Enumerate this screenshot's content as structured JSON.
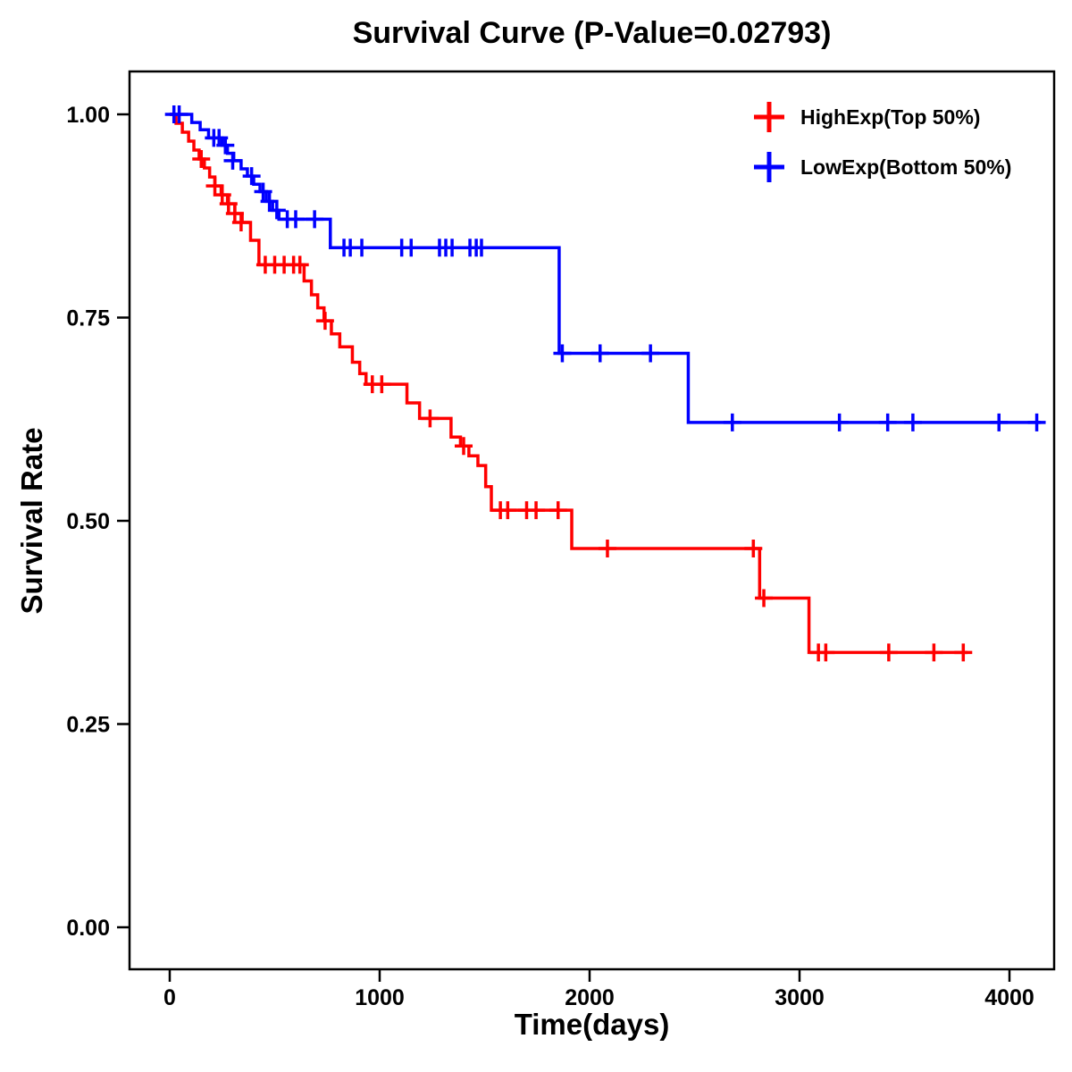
{
  "title": "Survival Curve (P-Value=0.02793)",
  "chart_data": {
    "type": "line",
    "subtype": "kaplan-meier-step-curve",
    "title": "Survival Curve (P-Value=0.02793)",
    "xlabel": "Time(days)",
    "ylabel": "Survival Rate",
    "xlim": [
      0,
      4150
    ],
    "ylim": [
      0.0,
      1.0
    ],
    "xticks": [
      0,
      1000,
      2000,
      3000,
      4000
    ],
    "xtick_labels": [
      "0",
      "1000",
      "2000",
      "3000",
      "4000"
    ],
    "yticks": [
      1.0,
      0.75,
      0.5,
      0.25,
      0.0
    ],
    "ytick_labels": [
      "1.00",
      "0.75",
      "0.50",
      "0.25",
      "0.00"
    ],
    "grid": false,
    "legend_position": "top-right",
    "p_value": "0.02793",
    "series": [
      {
        "name": "HighExp(Top 50%)",
        "color": "#ff0000",
        "end_time": 3800,
        "drops": [
          [
            0,
            1.0
          ],
          [
            30,
            0.989
          ],
          [
            60,
            0.978
          ],
          [
            90,
            0.967
          ],
          [
            115,
            0.956
          ],
          [
            140,
            0.945
          ],
          [
            165,
            0.934
          ],
          [
            190,
            0.923
          ],
          [
            215,
            0.912
          ],
          [
            245,
            0.901
          ],
          [
            275,
            0.89
          ],
          [
            310,
            0.878
          ],
          [
            345,
            0.867
          ],
          [
            385,
            0.845
          ],
          [
            425,
            0.815
          ],
          [
            640,
            0.795
          ],
          [
            675,
            0.778
          ],
          [
            705,
            0.762
          ],
          [
            735,
            0.746
          ],
          [
            770,
            0.73
          ],
          [
            810,
            0.714
          ],
          [
            870,
            0.695
          ],
          [
            905,
            0.681
          ],
          [
            935,
            0.668
          ],
          [
            1130,
            0.645
          ],
          [
            1190,
            0.626
          ],
          [
            1340,
            0.603
          ],
          [
            1385,
            0.592
          ],
          [
            1425,
            0.58
          ],
          [
            1468,
            0.568
          ],
          [
            1505,
            0.542
          ],
          [
            1532,
            0.513
          ],
          [
            1915,
            0.466
          ],
          [
            2810,
            0.405
          ],
          [
            3045,
            0.338
          ]
        ],
        "censors": [
          [
            150,
            0.945
          ],
          [
            215,
            0.912
          ],
          [
            250,
            0.901
          ],
          [
            280,
            0.89
          ],
          [
            310,
            0.878
          ],
          [
            340,
            0.867
          ],
          [
            455,
            0.815
          ],
          [
            500,
            0.815
          ],
          [
            545,
            0.815
          ],
          [
            590,
            0.815
          ],
          [
            620,
            0.815
          ],
          [
            740,
            0.746
          ],
          [
            965,
            0.668
          ],
          [
            1010,
            0.668
          ],
          [
            1240,
            0.626
          ],
          [
            1400,
            0.592
          ],
          [
            1575,
            0.513
          ],
          [
            1610,
            0.513
          ],
          [
            1700,
            0.513
          ],
          [
            1745,
            0.513
          ],
          [
            1850,
            0.513
          ],
          [
            2085,
            0.466
          ],
          [
            2780,
            0.466
          ],
          [
            2830,
            0.405
          ],
          [
            3090,
            0.338
          ],
          [
            3125,
            0.338
          ],
          [
            3425,
            0.338
          ],
          [
            3640,
            0.338
          ],
          [
            3780,
            0.338
          ]
        ]
      },
      {
        "name": "LowExp(Bottom 50%)",
        "color": "#0000ff",
        "end_time": 4150,
        "drops": [
          [
            0,
            1.0
          ],
          [
            105,
            0.99
          ],
          [
            145,
            0.981
          ],
          [
            185,
            0.971
          ],
          [
            250,
            0.962
          ],
          [
            275,
            0.952
          ],
          [
            305,
            0.943
          ],
          [
            340,
            0.933
          ],
          [
            370,
            0.924
          ],
          [
            400,
            0.914
          ],
          [
            430,
            0.905
          ],
          [
            460,
            0.893
          ],
          [
            490,
            0.882
          ],
          [
            520,
            0.871
          ],
          [
            765,
            0.836
          ],
          [
            1855,
            0.706
          ],
          [
            2470,
            0.621
          ]
        ],
        "censors": [
          [
            20,
            1.0
          ],
          [
            45,
            1.0
          ],
          [
            210,
            0.971
          ],
          [
            235,
            0.971
          ],
          [
            265,
            0.962
          ],
          [
            300,
            0.943
          ],
          [
            390,
            0.924
          ],
          [
            445,
            0.905
          ],
          [
            475,
            0.893
          ],
          [
            510,
            0.882
          ],
          [
            560,
            0.871
          ],
          [
            600,
            0.871
          ],
          [
            690,
            0.871
          ],
          [
            830,
            0.836
          ],
          [
            860,
            0.836
          ],
          [
            915,
            0.836
          ],
          [
            1105,
            0.836
          ],
          [
            1150,
            0.836
          ],
          [
            1285,
            0.836
          ],
          [
            1315,
            0.836
          ],
          [
            1345,
            0.836
          ],
          [
            1430,
            0.836
          ],
          [
            1460,
            0.836
          ],
          [
            1485,
            0.836
          ],
          [
            1870,
            0.706
          ],
          [
            2050,
            0.706
          ],
          [
            2290,
            0.706
          ],
          [
            2680,
            0.621
          ],
          [
            3190,
            0.621
          ],
          [
            3420,
            0.621
          ],
          [
            3540,
            0.621
          ],
          [
            3950,
            0.621
          ],
          [
            4130,
            0.621
          ]
        ]
      }
    ]
  }
}
